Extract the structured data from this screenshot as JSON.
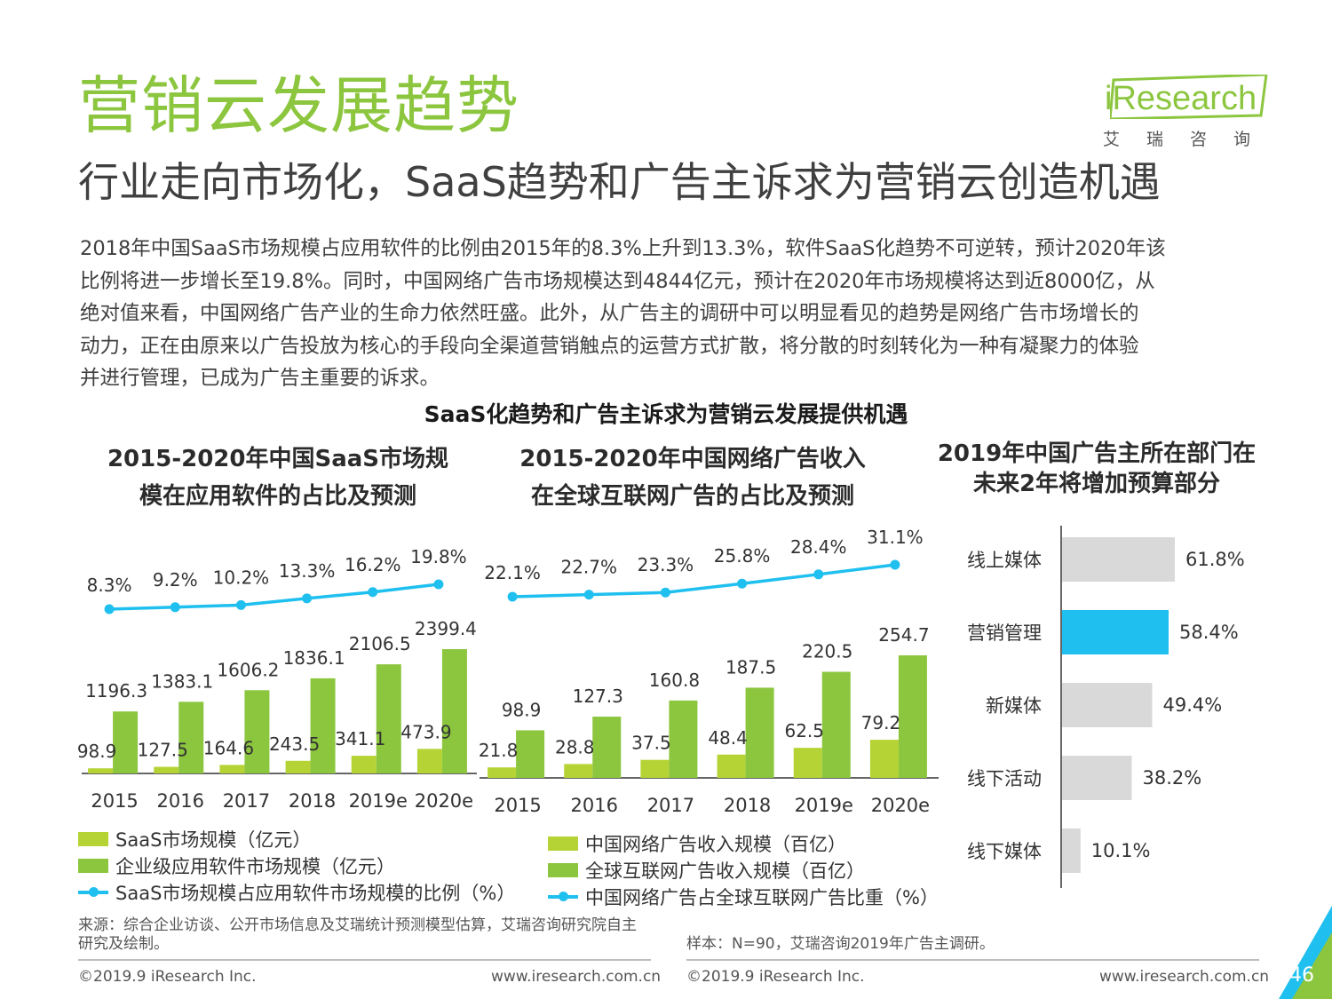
{
  "header": {
    "title": "营销云发展趋势",
    "subtitle": "行业走向市场化，SaaS趋势和广告主诉求为营销云创造机遇",
    "logo_text": "iResearch",
    "logo_sub": "艾瑞咨询"
  },
  "body": {
    "lines": [
      "2018年中国SaaS市场规模占应用软件的比例由2015年的8.3%上升到13.3%，软件SaaS化趋势不可逆转，预计2020年该",
      "比例将进一步增长至19.8%。同时，中国网络广告市场规模达到4844亿元，预计在2020年市场规模将达到近8000亿，从",
      "绝对值来看，中国网络广告产业的生命力依然旺盛。此外，从广告主的调研中可以明显看见的趋势是网络广告市场增长的",
      "动力，正在由原来以广告投放为核心的手段向全渠道营销触点的运营方式扩散，将分散的时刻转化为一种有凝聚力的体验",
      "并进行管理，已成为广告主重要的诉求。"
    ]
  },
  "section_heading": "SaaS化趋势和广告主诉求为营销云发展提供机遇",
  "colors": {
    "title_green": "#8cc63f",
    "light_green": "#b5d334",
    "dark_green": "#8cc63f",
    "line_blue": "#1fc0ef",
    "gray_bar": "#d9d9d9",
    "highlight_bar": "#1fc0ef"
  },
  "chart_data": [
    {
      "type": "bar",
      "title_lines": [
        "2015-2020年中国SaaS市场规",
        "模在应用软件的占比及预测"
      ],
      "categories": [
        "2015",
        "2016",
        "2017",
        "2018",
        "2019e",
        "2020e"
      ],
      "series": [
        {
          "name": "SaaS市场规模（亿元）",
          "values": [
            98.9,
            127.5,
            164.6,
            243.5,
            341.1,
            473.9
          ]
        },
        {
          "name": "企业级应用软件市场规模（亿元）",
          "values": [
            1196.3,
            1383.1,
            1606.2,
            1836.1,
            2106.5,
            2399.4
          ]
        }
      ],
      "line_series": {
        "name": "SaaS市场规模占应用软件市场规模的比例（%）",
        "labels": [
          "8.3%",
          "9.2%",
          "10.2%",
          "13.3%",
          "16.2%",
          "19.8%"
        ],
        "values": [
          8.3,
          9.2,
          10.2,
          13.3,
          16.2,
          19.8
        ]
      },
      "legend": "bottom"
    },
    {
      "type": "bar",
      "title_lines": [
        "2015-2020年中国网络广告收入",
        "在全球互联网广告的占比及预测"
      ],
      "categories": [
        "2015",
        "2016",
        "2017",
        "2018",
        "2019e",
        "2020e"
      ],
      "series": [
        {
          "name": "中国网络广告收入规模（百亿）",
          "values": [
            21.8,
            28.8,
            37.5,
            48.4,
            62.5,
            79.2
          ]
        },
        {
          "name": "全球互联网广告收入规模（百亿）",
          "values": [
            98.9,
            127.3,
            160.8,
            187.5,
            220.5,
            254.7
          ]
        }
      ],
      "line_series": {
        "name": "中国网络广告占全球互联网广告比重（%）",
        "labels": [
          "22.1%",
          "22.7%",
          "23.3%",
          "25.8%",
          "28.4%",
          "31.1%"
        ],
        "values": [
          22.1,
          22.7,
          23.3,
          25.8,
          28.4,
          31.1
        ]
      },
      "legend": "bottom"
    },
    {
      "type": "bar",
      "orientation": "horizontal",
      "title_lines": [
        "2019年中国广告主所在部门在",
        "未来2年将增加预算部分"
      ],
      "categories": [
        "线上媒体",
        "营销管理",
        "新媒体",
        "线下活动",
        "线下媒体"
      ],
      "values": [
        61.8,
        58.4,
        49.4,
        38.2,
        10.1
      ],
      "labels": [
        "61.8%",
        "58.4%",
        "49.4%",
        "38.2%",
        "10.1%"
      ],
      "highlight": "营销管理"
    }
  ],
  "footer": {
    "source": "来源：综合企业访谈、公开市场信息及艾瑞统计预测模型估算，艾瑞咨询研究院自主研究及绘制。",
    "sample": "样本：N=90，艾瑞咨询2019年广告主调研。",
    "copyright_left": "©2019.9 iResearch Inc.",
    "url_left": "www.iresearch.com.cn",
    "copyright_right": "©2019.9 iResearch Inc.",
    "url_right": "www.iresearch.com.cn",
    "page_number": "46"
  }
}
